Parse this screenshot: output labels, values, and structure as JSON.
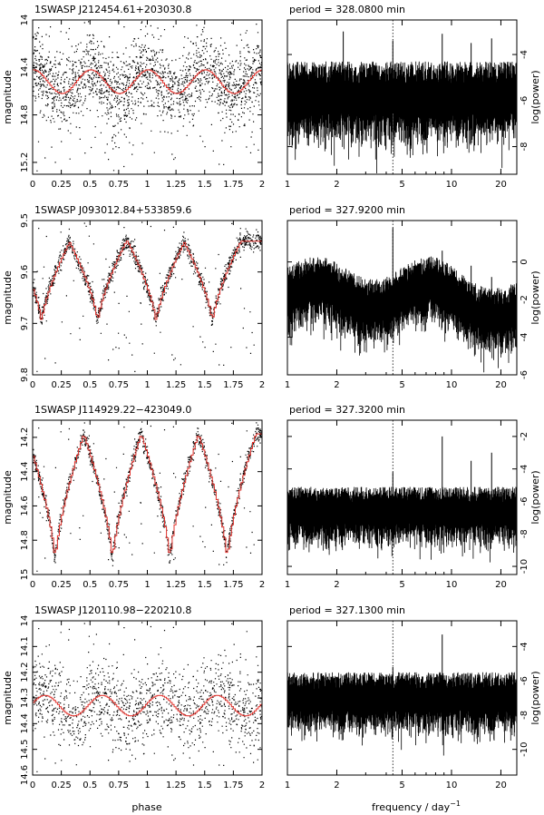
{
  "figure": {
    "xlabel_left": "phase",
    "xlabel_right_main": "frequency / day",
    "xlabel_right_sup": "−1",
    "ylabel_left": "magnitude",
    "ylabel_right": "log(power)"
  },
  "chart_data": [
    {
      "type": "scatter",
      "title": "1SWASP  J212454.61+203030.8",
      "xlabel": "phase",
      "ylabel": "magnitude",
      "xlim": [
        0,
        2
      ],
      "ylim": [
        15.3,
        14.0
      ],
      "x_ticks": [
        "0",
        "0.25",
        "0.5",
        "0.75",
        "1",
        "1.25",
        "1.5",
        "1.75",
        "2"
      ],
      "y_ticks": [
        "14",
        "14.4",
        "14.8",
        "15.2"
      ],
      "y_tick_values": [
        14.0,
        14.4,
        14.8,
        15.2
      ],
      "model": {
        "baseline": 14.52,
        "amplitude": 0.1,
        "minima_phase": [
          0.25,
          0.75,
          1.25,
          1.75
        ],
        "scatter": 0.22
      },
      "fitted_curve_color": "#e0302a"
    },
    {
      "type": "line",
      "title": "period = 328.0800 min",
      "xlabel": "frequency / day⁻¹",
      "ylabel": "log(power)",
      "x_log": true,
      "xlim": [
        1,
        25
      ],
      "ylim": [
        -9.2,
        -2.5
      ],
      "x_ticks": [
        "1",
        "2",
        "5",
        "10",
        "20"
      ],
      "x_tick_values": [
        1,
        2,
        5,
        10,
        20
      ],
      "y_ticks": [
        "-4",
        "-6",
        "-8"
      ],
      "y_tick_values": [
        -4,
        -6,
        -8
      ],
      "marker_frequency": 4.39,
      "noise_level": -6.0,
      "peaks": [
        {
          "f": 2.19,
          "log_power": -3.0
        },
        {
          "f": 4.39,
          "log_power": -3.4
        },
        {
          "f": 8.78,
          "log_power": -3.1
        },
        {
          "f": 13.17,
          "log_power": -3.5
        },
        {
          "f": 17.56,
          "log_power": -3.3
        }
      ]
    },
    {
      "type": "scatter",
      "title": "1SWASP  J093012.84+533859.6",
      "xlabel": "phase",
      "ylabel": "magnitude",
      "xlim": [
        0,
        2
      ],
      "ylim": [
        9.8,
        9.5
      ],
      "x_ticks": [
        "0",
        "0.25",
        "0.5",
        "0.75",
        "1",
        "1.25",
        "1.5",
        "1.75",
        "2"
      ],
      "y_ticks": [
        "9.5",
        "9.6",
        "9.7",
        "9.8"
      ],
      "y_tick_values": [
        9.5,
        9.6,
        9.7,
        9.8
      ],
      "model": {
        "max_mag": 9.54,
        "min_mag": 9.7,
        "minima_phase": [
          0.07,
          0.56,
          1.07,
          1.56
        ],
        "scatter": 0.012
      },
      "fitted_curve_color": "#e0302a"
    },
    {
      "type": "line",
      "title": "period = 327.9200 min",
      "xlabel": "frequency / day⁻¹",
      "ylabel": "log(power)",
      "x_log": true,
      "xlim": [
        1,
        25
      ],
      "ylim": [
        -6.0,
        2.2
      ],
      "x_ticks": [
        "1",
        "2",
        "5",
        "10",
        "20"
      ],
      "x_tick_values": [
        1,
        2,
        5,
        10,
        20
      ],
      "y_ticks": [
        "0",
        "-2",
        "-4",
        "-6"
      ],
      "y_tick_values": [
        0,
        -2,
        -4,
        -6
      ],
      "marker_frequency": 4.39,
      "noise_level": -2.0,
      "peaks": [
        {
          "f": 4.39,
          "log_power": 1.8
        },
        {
          "f": 8.78,
          "log_power": 0.6
        },
        {
          "f": 13.17,
          "log_power": -0.2
        },
        {
          "f": 17.56,
          "log_power": -0.8
        }
      ]
    },
    {
      "type": "scatter",
      "title": "1SWASP  J114929.22−423049.0",
      "xlabel": "phase",
      "ylabel": "magnitude",
      "xlim": [
        0,
        2
      ],
      "ylim": [
        15.0,
        14.1
      ],
      "x_ticks": [
        "0",
        "0.25",
        "0.5",
        "0.75",
        "1",
        "1.25",
        "1.5",
        "1.75",
        "2"
      ],
      "y_ticks": [
        "14.2",
        "14.4",
        "14.6",
        "14.8",
        "15"
      ],
      "y_tick_values": [
        14.2,
        14.4,
        14.6,
        14.8,
        15.0
      ],
      "model": {
        "max_mag": 14.18,
        "min_mag": 14.93,
        "minima_phase": [
          0.19,
          0.69,
          1.19,
          1.69
        ],
        "scatter": 0.035
      },
      "fitted_curve_color": "#e0302a"
    },
    {
      "type": "line",
      "title": "period = 327.3200 min",
      "xlabel": "frequency / day⁻¹",
      "ylabel": "log(power)",
      "x_log": true,
      "xlim": [
        1,
        25
      ],
      "ylim": [
        -10.5,
        -1.0
      ],
      "x_ticks": [
        "1",
        "2",
        "5",
        "10",
        "20"
      ],
      "x_tick_values": [
        1,
        2,
        5,
        10,
        20
      ],
      "y_ticks": [
        "-2",
        "-4",
        "-6",
        "-8",
        "-10"
      ],
      "y_tick_values": [
        -2,
        -4,
        -6,
        -8,
        -10
      ],
      "marker_frequency": 4.39,
      "noise_level": -6.8,
      "peaks": [
        {
          "f": 4.39,
          "log_power": -4.2
        },
        {
          "f": 8.78,
          "log_power": -2.0
        },
        {
          "f": 13.17,
          "log_power": -3.5
        },
        {
          "f": 17.56,
          "log_power": -3.0
        }
      ]
    },
    {
      "type": "scatter",
      "title": "1SWASP  J120110.98−220210.8",
      "xlabel": "phase",
      "ylabel": "magnitude",
      "xlim": [
        0,
        2
      ],
      "ylim": [
        14.6,
        14.0
      ],
      "x_ticks": [
        "0",
        "0.25",
        "0.5",
        "0.75",
        "1",
        "1.25",
        "1.5",
        "1.75",
        "2"
      ],
      "y_ticks": [
        "14",
        "14.1",
        "14.2",
        "14.3",
        "14.4",
        "14.5",
        "14.6"
      ],
      "y_tick_values": [
        14.0,
        14.1,
        14.2,
        14.3,
        14.4,
        14.5,
        14.6
      ],
      "model": {
        "baseline": 14.33,
        "amplitude": 0.04,
        "minima_phase": [
          0.35,
          0.85,
          1.35,
          1.85
        ],
        "scatter": 0.11
      },
      "fitted_curve_color": "#e0302a"
    },
    {
      "type": "line",
      "title": "period = 327.1300 min",
      "xlabel": "frequency / day⁻¹",
      "ylabel": "log(power)",
      "x_log": true,
      "xlim": [
        1,
        25
      ],
      "ylim": [
        -11.5,
        -2.5
      ],
      "x_ticks": [
        "1",
        "2",
        "5",
        "10",
        "20"
      ],
      "x_tick_values": [
        1,
        2,
        5,
        10,
        20
      ],
      "y_ticks": [
        "-4",
        "-6",
        "-8",
        "-10"
      ],
      "y_tick_values": [
        -4,
        -6,
        -8,
        -10
      ],
      "marker_frequency": 4.39,
      "noise_level": -7.2,
      "peaks": [
        {
          "f": 4.39,
          "log_power": -5.2
        },
        {
          "f": 8.78,
          "log_power": -3.3
        },
        {
          "f": 13.17,
          "log_power": -5.6
        }
      ]
    }
  ]
}
